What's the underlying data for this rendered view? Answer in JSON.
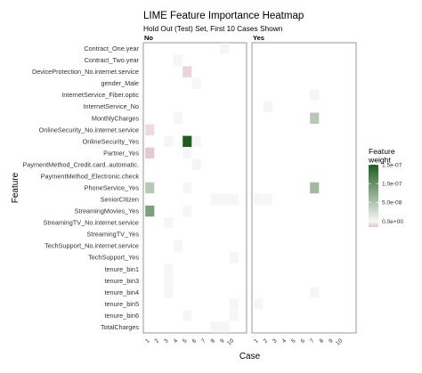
{
  "chart_data": {
    "type": "heatmap",
    "title": "LIME Feature Importance Heatmap",
    "subtitle": "Hold Out (Test) Set, First 10 Cases Shown",
    "xlabel": "Case",
    "ylabel": "Feature",
    "facets": [
      "No",
      "Yes"
    ],
    "cases": [
      "1",
      "2",
      "3",
      "4",
      "5",
      "6",
      "7",
      "8",
      "9",
      "10"
    ],
    "features": [
      "Contract_One.year",
      "Contract_Two.year",
      "DeviceProtection_No.internet.service",
      "gender_Male",
      "InternetService_Fiber.optic",
      "InternetService_No",
      "MonthlyCharges",
      "OnlineSecurity_No.internet.service",
      "OnlineSecurity_Yes",
      "Partner_Yes",
      "PaymentMethod_Credit.card..automatic.",
      "PaymentMethod_Electronic.check",
      "PhoneService_Yes",
      "SeniorCitizen",
      "StreamingMovies_Yes",
      "StreamingTV_No.internet.service",
      "StreamingTV_Yes",
      "TechSupport_No.internet.service",
      "TechSupport_Yes",
      "tenure_bin1",
      "tenure_bin3",
      "tenure_bin4",
      "tenure_bin5",
      "tenure_bin6",
      "TotalCharges"
    ],
    "cells": [
      {
        "facet": "No",
        "feature": "Contract_One.year",
        "case": "9",
        "value": 5e-10
      },
      {
        "facet": "No",
        "feature": "Contract_Two.year",
        "case": "4",
        "value": 5e-10
      },
      {
        "facet": "No",
        "feature": "DeviceProtection_No.internet.service",
        "case": "5",
        "value": -1e-08
      },
      {
        "facet": "No",
        "feature": "gender_Male",
        "case": "6",
        "value": 5e-10
      },
      {
        "facet": "No",
        "feature": "MonthlyCharges",
        "case": "4",
        "value": 5e-10
      },
      {
        "facet": "No",
        "feature": "OnlineSecurity_No.internet.service",
        "case": "1",
        "value": -8e-09
      },
      {
        "facet": "No",
        "feature": "OnlineSecurity_Yes",
        "case": "3",
        "value": 5e-10
      },
      {
        "facet": "No",
        "feature": "OnlineSecurity_Yes",
        "case": "5",
        "value": 1.5e-07
      },
      {
        "facet": "No",
        "feature": "OnlineSecurity_Yes",
        "case": "6",
        "value": 1e-09
      },
      {
        "facet": "No",
        "feature": "Partner_Yes",
        "case": "1",
        "value": -1.4e-08
      },
      {
        "facet": "No",
        "feature": "Partner_Yes",
        "case": "5",
        "value": 5e-10
      },
      {
        "facet": "No",
        "feature": "PaymentMethod_Credit.card..automatic.",
        "case": "6",
        "value": 1.5e-09
      },
      {
        "facet": "No",
        "feature": "PhoneService_Yes",
        "case": "1",
        "value": 4.5e-08
      },
      {
        "facet": "No",
        "feature": "PhoneService_Yes",
        "case": "5",
        "value": 5e-10
      },
      {
        "facet": "No",
        "feature": "SeniorCitizen",
        "case": "8",
        "value": 5e-10
      },
      {
        "facet": "No",
        "feature": "SeniorCitizen",
        "case": "9",
        "value": 5e-10
      },
      {
        "facet": "No",
        "feature": "SeniorCitizen",
        "case": "10",
        "value": 5e-10
      },
      {
        "facet": "No",
        "feature": "StreamingMovies_Yes",
        "case": "1",
        "value": 8.5e-08
      },
      {
        "facet": "No",
        "feature": "StreamingMovies_Yes",
        "case": "5",
        "value": 5e-10
      },
      {
        "facet": "No",
        "feature": "StreamingTV_No.internet.service",
        "case": "3",
        "value": 5e-10
      },
      {
        "facet": "No",
        "feature": "TechSupport_No.internet.service",
        "case": "4",
        "value": 5e-10
      },
      {
        "facet": "No",
        "feature": "TechSupport_Yes",
        "case": "10",
        "value": 5e-10
      },
      {
        "facet": "No",
        "feature": "tenure_bin1",
        "case": "3",
        "value": 5e-10
      },
      {
        "facet": "No",
        "feature": "tenure_bin3",
        "case": "3",
        "value": 5e-10
      },
      {
        "facet": "No",
        "feature": "tenure_bin4",
        "case": "3",
        "value": 5e-10
      },
      {
        "facet": "No",
        "feature": "tenure_bin5",
        "case": "10",
        "value": 5e-10
      },
      {
        "facet": "No",
        "feature": "tenure_bin6",
        "case": "5",
        "value": 1e-09
      },
      {
        "facet": "No",
        "feature": "tenure_bin6",
        "case": "10",
        "value": 5e-10
      },
      {
        "facet": "No",
        "feature": "TotalCharges",
        "case": "8",
        "value": 5e-10
      },
      {
        "facet": "No",
        "feature": "TotalCharges",
        "case": "9",
        "value": 5e-10
      },
      {
        "facet": "Yes",
        "feature": "InternetService_Fiber.optic",
        "case": "7",
        "value": 1e-09
      },
      {
        "facet": "Yes",
        "feature": "InternetService_No",
        "case": "2",
        "value": 5e-10
      },
      {
        "facet": "Yes",
        "feature": "MonthlyCharges",
        "case": "7",
        "value": 4.5e-08
      },
      {
        "facet": "Yes",
        "feature": "PhoneService_Yes",
        "case": "7",
        "value": 6e-08
      },
      {
        "facet": "Yes",
        "feature": "SeniorCitizen",
        "case": "1",
        "value": 5e-10
      },
      {
        "facet": "Yes",
        "feature": "SeniorCitizen",
        "case": "2",
        "value": 5e-10
      },
      {
        "facet": "Yes",
        "feature": "tenure_bin4",
        "case": "7",
        "value": 5e-10
      },
      {
        "facet": "Yes",
        "feature": "tenure_bin5",
        "case": "1",
        "value": 5e-10
      }
    ],
    "legend": {
      "title": "Feature weight",
      "ticks": [
        "1.5e-07",
        "1.0e-07",
        "5.0e-08",
        "0.0e+00"
      ],
      "tick_values": [
        1.5e-07,
        1e-07,
        5e-08,
        0
      ],
      "range": [
        -1.5e-08,
        1.5e-07
      ],
      "colors": {
        "low": "#e7c3d0",
        "mid": "#f7f7f7",
        "high": "#1c5e1c"
      }
    },
    "grid": false
  }
}
